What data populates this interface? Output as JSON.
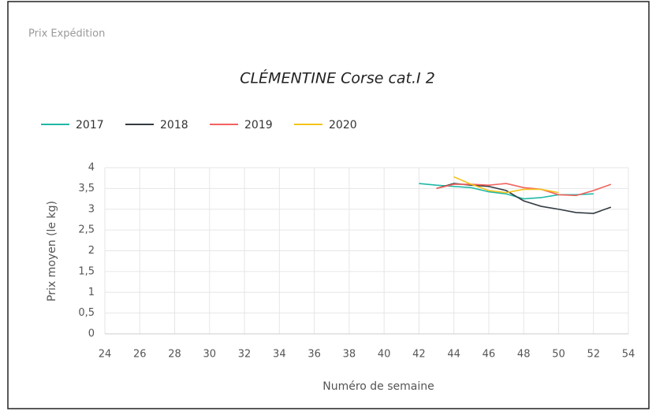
{
  "header": {
    "title": "Prix Expédition"
  },
  "chart_data": {
    "type": "line",
    "title": "CLÉMENTINE Corse cat.I 2",
    "x": [
      42,
      43,
      44,
      45,
      46,
      47,
      48,
      49,
      50,
      51,
      52,
      53
    ],
    "series": [
      {
        "name": "2017",
        "color": "#1fb8a6",
        "values": [
          3.62,
          3.58,
          3.55,
          3.52,
          3.42,
          3.37,
          3.25,
          3.28,
          3.35,
          3.35,
          3.37,
          null
        ]
      },
      {
        "name": "2018",
        "color": "#333b40",
        "values": [
          null,
          3.5,
          3.62,
          3.58,
          3.55,
          3.45,
          3.2,
          3.07,
          3.0,
          2.92,
          2.9,
          3.05
        ]
      },
      {
        "name": "2019",
        "color": "#f2625e",
        "values": [
          null,
          3.5,
          3.6,
          3.6,
          3.58,
          3.62,
          3.52,
          3.48,
          3.35,
          3.33,
          3.45,
          3.6
        ]
      },
      {
        "name": "2020",
        "color": "#f5c31a",
        "values": [
          null,
          null,
          3.78,
          3.6,
          3.45,
          3.4,
          3.48,
          3.48,
          3.4,
          null,
          null,
          null
        ]
      }
    ],
    "xlim": [
      24,
      54
    ],
    "xticks": [
      24,
      26,
      28,
      30,
      32,
      34,
      36,
      38,
      40,
      42,
      44,
      46,
      48,
      50,
      52,
      54
    ],
    "ylim": [
      0,
      4
    ],
    "yticks": [
      0,
      {
        "value": 0.5,
        "label": "0,5"
      },
      1,
      {
        "value": 1.5,
        "label": "1,5"
      },
      2,
      {
        "value": 2.5,
        "label": "2,5"
      },
      3,
      {
        "value": 3.5,
        "label": "3,5"
      },
      4
    ],
    "xlabel": "Numéro de semaine",
    "ylabel": "Prix moyen  (le kg)",
    "grid": true,
    "legend": "top-left"
  }
}
